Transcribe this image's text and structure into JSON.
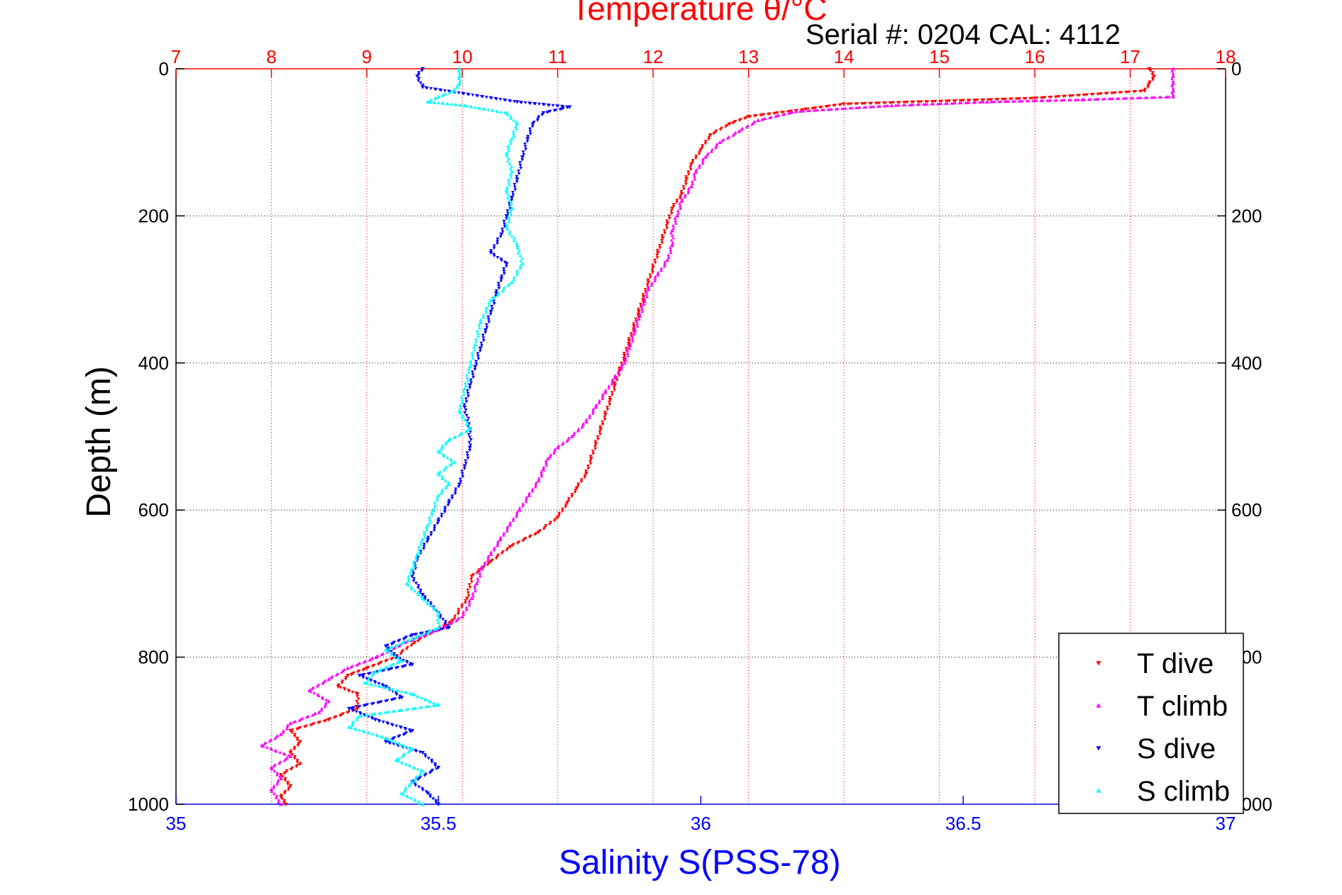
{
  "chart_data": {
    "type": "scatter",
    "title": "Temperature θ/°C",
    "subtitle": "Serial #: 0204  CAL: 4112",
    "xlabel": "Salinity S(PSS-78)",
    "ylabel": "Depth (m)",
    "x_bottom_lim": [
      35,
      37
    ],
    "x_bottom_ticks": [
      "35",
      "35.5",
      "36",
      "36.5",
      "37"
    ],
    "x_top_lim": [
      7,
      18
    ],
    "x_top_ticks": [
      "7",
      "8",
      "9",
      "10",
      "11",
      "12",
      "13",
      "14",
      "15",
      "16",
      "17",
      "18"
    ],
    "ylim": [
      0,
      1000
    ],
    "y_ticks": [
      "0",
      "200",
      "400",
      "600",
      "800",
      "1000"
    ],
    "y_reversed": true,
    "grid": true,
    "legend_position": "bottom-right",
    "series": [
      {
        "name": "T dive",
        "axis": "temperature",
        "color": "#ff0000",
        "marker": "triangle-down",
        "points": [
          [
            17.2,
            0
          ],
          [
            17.25,
            10
          ],
          [
            17.2,
            20
          ],
          [
            17.15,
            30
          ],
          [
            16.0,
            40
          ],
          [
            14.0,
            48
          ],
          [
            13.6,
            55
          ],
          [
            13.0,
            65
          ],
          [
            12.8,
            75
          ],
          [
            12.6,
            90
          ],
          [
            12.5,
            110
          ],
          [
            12.4,
            130
          ],
          [
            12.35,
            150
          ],
          [
            12.3,
            170
          ],
          [
            12.2,
            190
          ],
          [
            12.15,
            210
          ],
          [
            12.1,
            230
          ],
          [
            12.05,
            250
          ],
          [
            12.0,
            270
          ],
          [
            11.95,
            290
          ],
          [
            11.9,
            310
          ],
          [
            11.85,
            330
          ],
          [
            11.8,
            350
          ],
          [
            11.75,
            370
          ],
          [
            11.7,
            390
          ],
          [
            11.65,
            410
          ],
          [
            11.6,
            430
          ],
          [
            11.55,
            450
          ],
          [
            11.5,
            470
          ],
          [
            11.45,
            490
          ],
          [
            11.4,
            510
          ],
          [
            11.35,
            530
          ],
          [
            11.3,
            550
          ],
          [
            11.2,
            570
          ],
          [
            11.1,
            590
          ],
          [
            11.0,
            610
          ],
          [
            10.8,
            630
          ],
          [
            10.5,
            650
          ],
          [
            10.3,
            670
          ],
          [
            10.1,
            690
          ],
          [
            10.05,
            720
          ],
          [
            9.9,
            750
          ],
          [
            9.7,
            765
          ],
          [
            9.5,
            780
          ],
          [
            9.3,
            800
          ],
          [
            9.0,
            815
          ],
          [
            8.8,
            825
          ],
          [
            8.7,
            840
          ],
          [
            8.9,
            850
          ],
          [
            8.9,
            870
          ],
          [
            8.6,
            885
          ],
          [
            8.2,
            900
          ],
          [
            8.3,
            915
          ],
          [
            8.2,
            930
          ],
          [
            8.3,
            945
          ],
          [
            8.1,
            960
          ],
          [
            8.2,
            975
          ],
          [
            8.1,
            990
          ],
          [
            8.15,
            1000
          ]
        ]
      },
      {
        "name": "T climb",
        "axis": "temperature",
        "color": "#ff00ff",
        "marker": "triangle-up",
        "points": [
          [
            17.45,
            0
          ],
          [
            17.45,
            10
          ],
          [
            17.45,
            20
          ],
          [
            17.45,
            30
          ],
          [
            17.45,
            38
          ],
          [
            16.5,
            42
          ],
          [
            15.5,
            45
          ],
          [
            14.5,
            50
          ],
          [
            13.5,
            58
          ],
          [
            13.1,
            70
          ],
          [
            12.9,
            85
          ],
          [
            12.7,
            100
          ],
          [
            12.55,
            120
          ],
          [
            12.45,
            140
          ],
          [
            12.4,
            160
          ],
          [
            12.3,
            180
          ],
          [
            12.25,
            200
          ],
          [
            12.2,
            220
          ],
          [
            12.2,
            240
          ],
          [
            12.15,
            260
          ],
          [
            12.05,
            280
          ],
          [
            11.95,
            300
          ],
          [
            11.9,
            320
          ],
          [
            11.85,
            340
          ],
          [
            11.8,
            360
          ],
          [
            11.75,
            380
          ],
          [
            11.7,
            400
          ],
          [
            11.6,
            420
          ],
          [
            11.5,
            440
          ],
          [
            11.4,
            460
          ],
          [
            11.3,
            480
          ],
          [
            11.15,
            500
          ],
          [
            11.0,
            515
          ],
          [
            10.9,
            530
          ],
          [
            10.85,
            545
          ],
          [
            10.8,
            560
          ],
          [
            10.7,
            580
          ],
          [
            10.6,
            600
          ],
          [
            10.5,
            620
          ],
          [
            10.4,
            640
          ],
          [
            10.3,
            660
          ],
          [
            10.2,
            680
          ],
          [
            10.15,
            700
          ],
          [
            10.1,
            720
          ],
          [
            10.0,
            745
          ],
          [
            9.8,
            760
          ],
          [
            9.4,
            780
          ],
          [
            9.1,
            800
          ],
          [
            8.8,
            815
          ],
          [
            8.6,
            830
          ],
          [
            8.4,
            845
          ],
          [
            8.6,
            860
          ],
          [
            8.5,
            875
          ],
          [
            8.2,
            890
          ],
          [
            8.1,
            905
          ],
          [
            7.9,
            920
          ],
          [
            8.2,
            935
          ],
          [
            8.0,
            950
          ],
          [
            8.1,
            965
          ],
          [
            8.0,
            980
          ],
          [
            8.1,
            1000
          ]
        ]
      },
      {
        "name": "S dive",
        "axis": "salinity",
        "color": "#0000ff",
        "marker": "triangle-down",
        "points": [
          [
            35.47,
            0
          ],
          [
            35.46,
            10
          ],
          [
            35.47,
            25
          ],
          [
            35.65,
            45
          ],
          [
            35.75,
            52
          ],
          [
            35.7,
            60
          ],
          [
            35.68,
            75
          ],
          [
            35.67,
            95
          ],
          [
            35.66,
            120
          ],
          [
            35.65,
            150
          ],
          [
            35.64,
            175
          ],
          [
            35.63,
            200
          ],
          [
            35.62,
            225
          ],
          [
            35.6,
            250
          ],
          [
            35.63,
            265
          ],
          [
            35.62,
            285
          ],
          [
            35.61,
            305
          ],
          [
            35.6,
            330
          ],
          [
            35.59,
            355
          ],
          [
            35.58,
            380
          ],
          [
            35.57,
            405
          ],
          [
            35.56,
            430
          ],
          [
            35.55,
            460
          ],
          [
            35.56,
            490
          ],
          [
            35.56,
            515
          ],
          [
            35.55,
            540
          ],
          [
            35.54,
            565
          ],
          [
            35.52,
            590
          ],
          [
            35.5,
            615
          ],
          [
            35.48,
            640
          ],
          [
            35.46,
            665
          ],
          [
            35.45,
            690
          ],
          [
            35.47,
            715
          ],
          [
            35.5,
            740
          ],
          [
            35.52,
            760
          ],
          [
            35.45,
            770
          ],
          [
            35.4,
            785
          ],
          [
            35.42,
            800
          ],
          [
            35.45,
            810
          ],
          [
            35.35,
            825
          ],
          [
            35.4,
            840
          ],
          [
            35.43,
            855
          ],
          [
            35.33,
            870
          ],
          [
            35.38,
            885
          ],
          [
            35.45,
            900
          ],
          [
            35.4,
            915
          ],
          [
            35.47,
            930
          ],
          [
            35.5,
            950
          ],
          [
            35.45,
            970
          ],
          [
            35.48,
            985
          ],
          [
            35.5,
            1000
          ]
        ]
      },
      {
        "name": "S climb",
        "axis": "salinity",
        "color": "#00ffff",
        "marker": "triangle-up",
        "points": [
          [
            35.54,
            0
          ],
          [
            35.54,
            10
          ],
          [
            35.54,
            20
          ],
          [
            35.53,
            30
          ],
          [
            35.5,
            38
          ],
          [
            35.48,
            45
          ],
          [
            35.55,
            50
          ],
          [
            35.63,
            60
          ],
          [
            35.65,
            75
          ],
          [
            35.64,
            95
          ],
          [
            35.63,
            115
          ],
          [
            35.64,
            140
          ],
          [
            35.63,
            165
          ],
          [
            35.64,
            190
          ],
          [
            35.63,
            215
          ],
          [
            35.65,
            240
          ],
          [
            35.66,
            265
          ],
          [
            35.64,
            290
          ],
          [
            35.6,
            315
          ],
          [
            35.58,
            345
          ],
          [
            35.57,
            375
          ],
          [
            35.56,
            405
          ],
          [
            35.55,
            435
          ],
          [
            35.54,
            465
          ],
          [
            35.56,
            490
          ],
          [
            35.52,
            505
          ],
          [
            35.5,
            520
          ],
          [
            35.53,
            535
          ],
          [
            35.5,
            550
          ],
          [
            35.52,
            565
          ],
          [
            35.5,
            580
          ],
          [
            35.49,
            600
          ],
          [
            35.48,
            620
          ],
          [
            35.47,
            640
          ],
          [
            35.46,
            660
          ],
          [
            35.45,
            680
          ],
          [
            35.44,
            700
          ],
          [
            35.47,
            720
          ],
          [
            35.5,
            740
          ],
          [
            35.5,
            760
          ],
          [
            35.45,
            775
          ],
          [
            35.4,
            790
          ],
          [
            35.43,
            805
          ],
          [
            35.38,
            820
          ],
          [
            35.36,
            835
          ],
          [
            35.45,
            850
          ],
          [
            35.5,
            865
          ],
          [
            35.35,
            880
          ],
          [
            35.33,
            895
          ],
          [
            35.4,
            910
          ],
          [
            35.45,
            925
          ],
          [
            35.42,
            940
          ],
          [
            35.47,
            955
          ],
          [
            35.45,
            970
          ],
          [
            35.43,
            985
          ],
          [
            35.47,
            1000
          ]
        ]
      }
    ]
  }
}
